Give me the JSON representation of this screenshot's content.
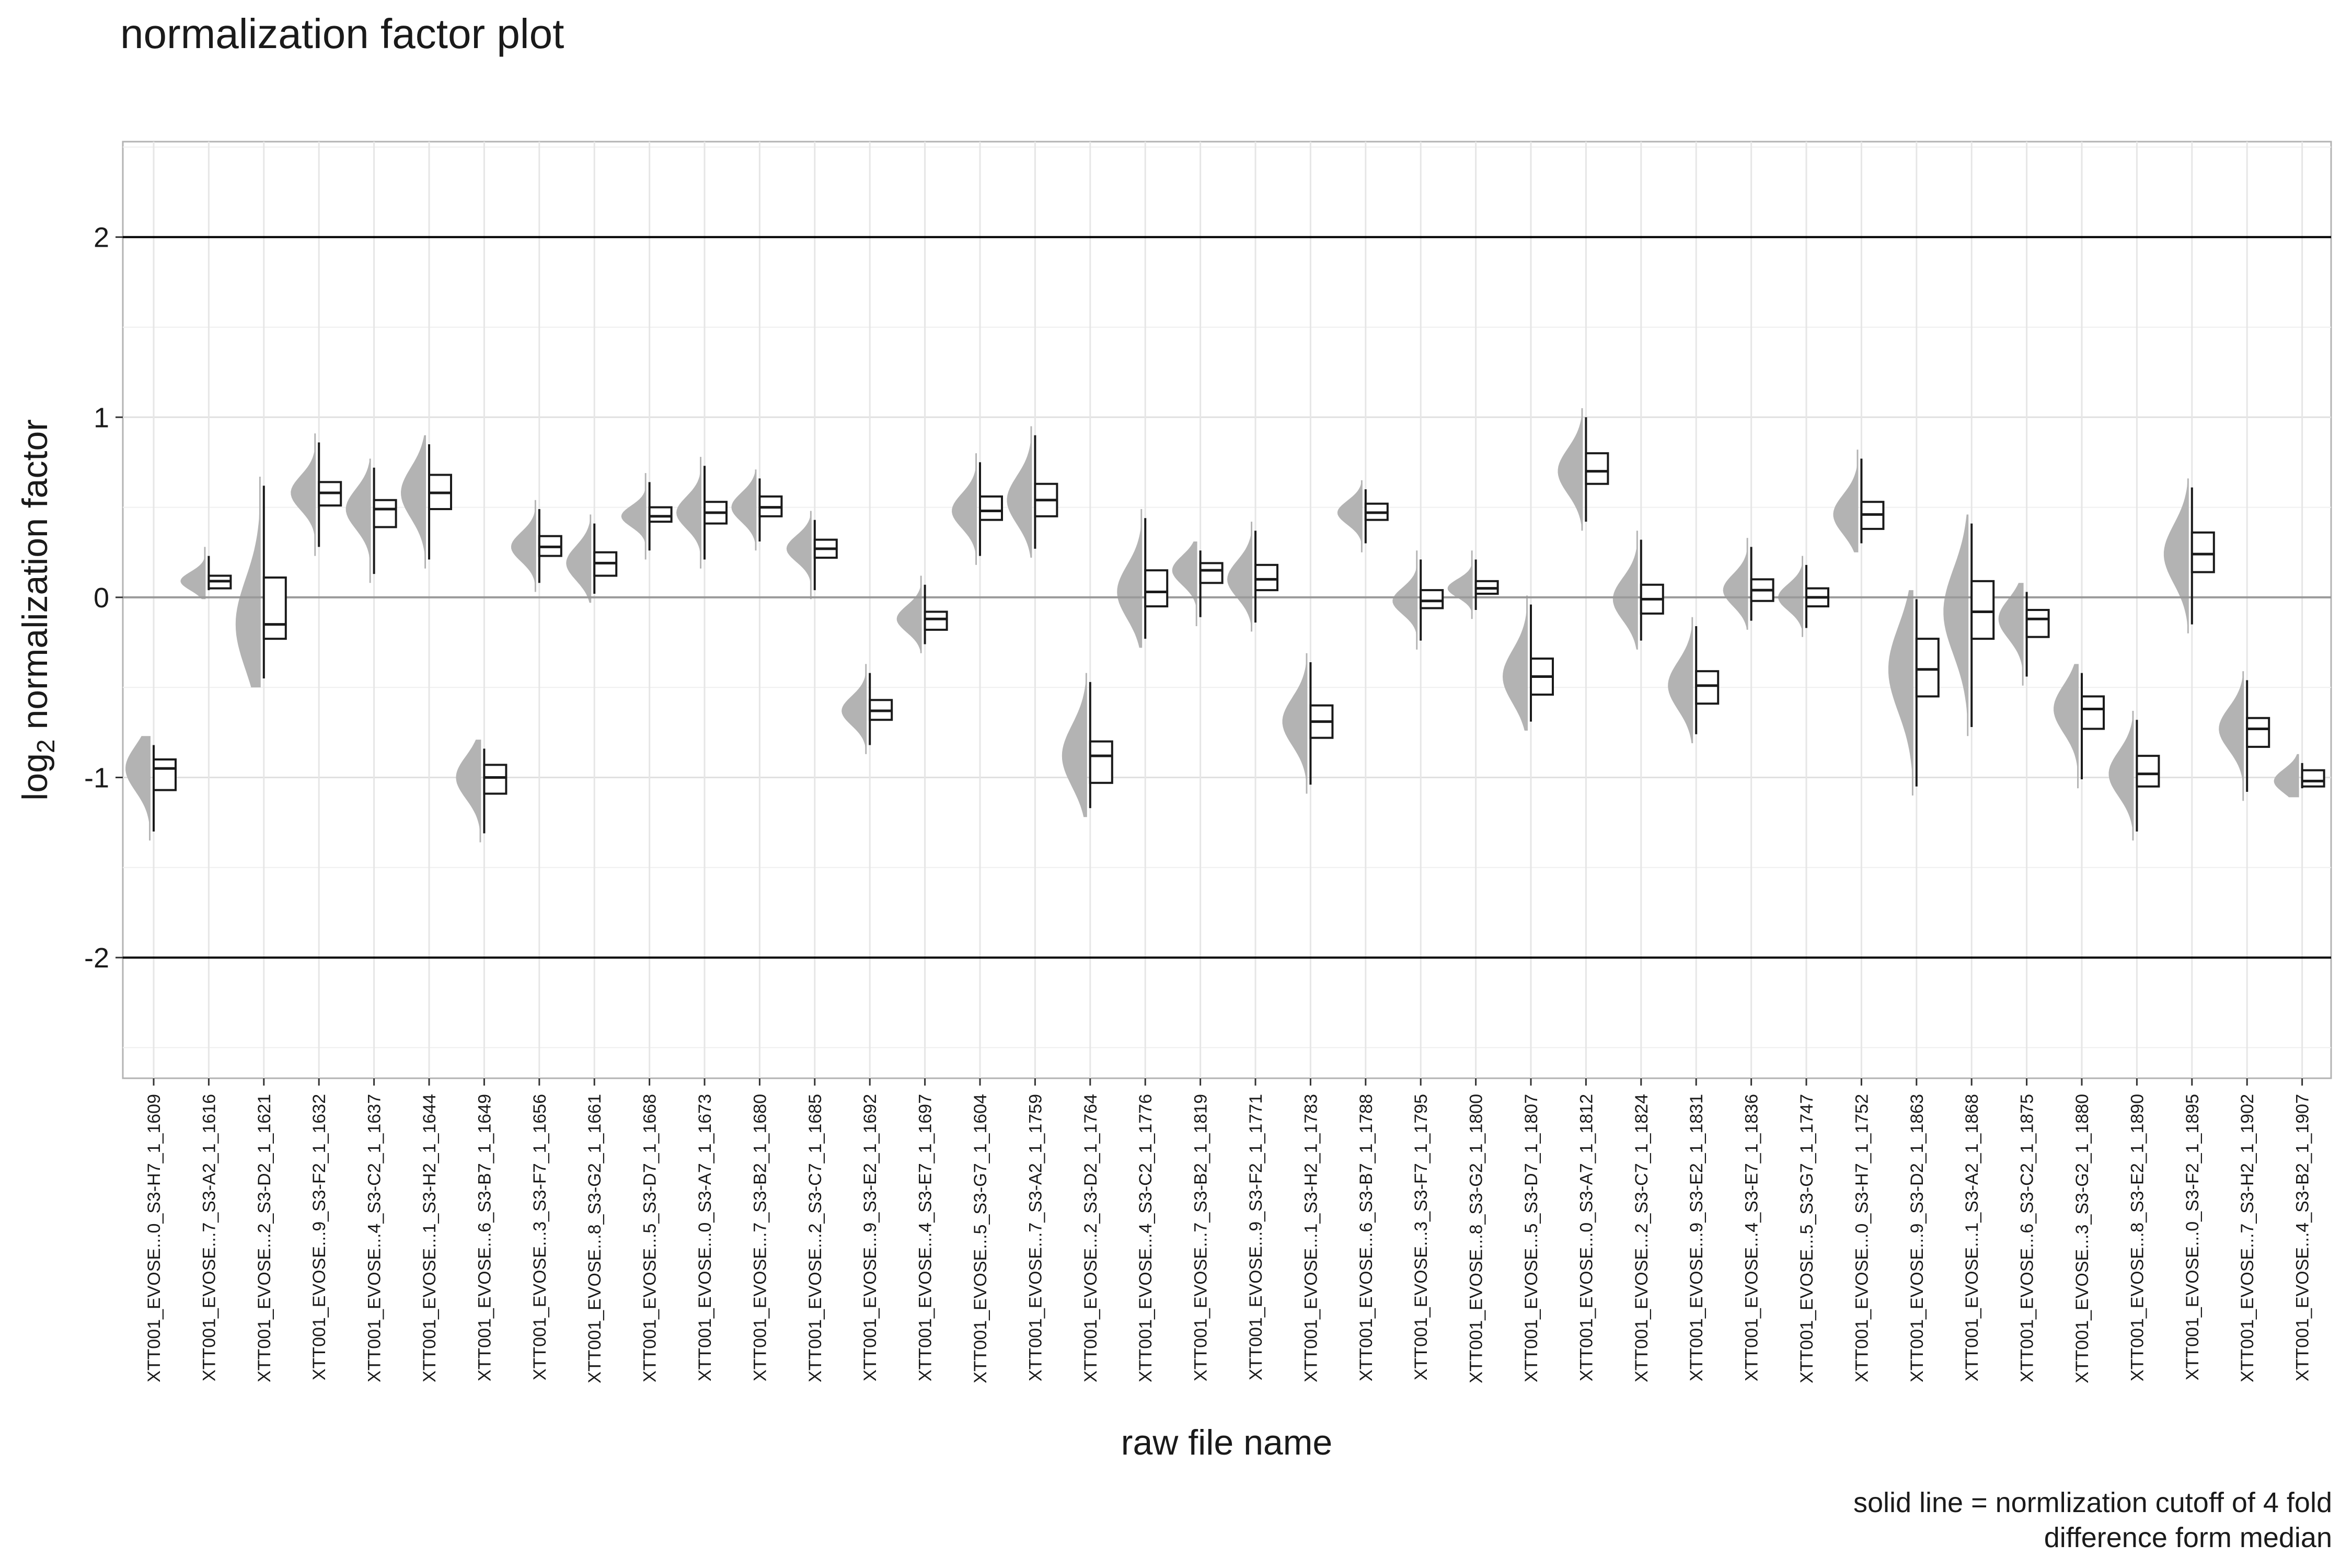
{
  "chart_data": {
    "type": "violin-boxplot",
    "title": "normalization factor plot",
    "xlabel": "raw file name",
    "ylabel_main": "log",
    "ylabel_sub": "2",
    "ylabel_rest": " normalization factor",
    "caption_line1": "solid line = normlization cutoff of 4 fold",
    "caption_line2": "difference form median",
    "ylim": [
      -2.67,
      2.53
    ],
    "yticks": [
      2,
      1,
      0,
      -1,
      -2
    ],
    "ytick_labels": [
      "2",
      "1",
      "0",
      "-1",
      "-2"
    ],
    "reference_lines": {
      "cutoffs": [
        2,
        -2
      ],
      "median": 0
    },
    "grid": true,
    "colors": {
      "violin": "#b3b3b3",
      "box": "#1a1a1a",
      "cutoff": "#000000",
      "median": "#9a9a9a",
      "grid": "#e3e3e3",
      "panel_border": "#b3b3b3"
    },
    "categories": [
      "XTT001_EVOSE...0_S3-H7_1_1609",
      "XTT001_EVOSE...7_S3-A2_1_1616",
      "XTT001_EVOSE...2_S3-D2_1_1621",
      "XTT001_EVOSE...9_S3-F2_1_1632",
      "XTT001_EVOSE...4_S3-C2_1_1637",
      "XTT001_EVOSE...1_S3-H2_1_1644",
      "XTT001_EVOSE...6_S3-B7_1_1649",
      "XTT001_EVOSE...3_S3-F7_1_1656",
      "XTT001_EVOSE...8_S3-G2_1_1661",
      "XTT001_EVOSE...5_S3-D7_1_1668",
      "XTT001_EVOSE...0_S3-A7_1_1673",
      "XTT001_EVOSE...7_S3-B2_1_1680",
      "XTT001_EVOSE...2_S3-C7_1_1685",
      "XTT001_EVOSE...9_S3-E2_1_1692",
      "XTT001_EVOSE...4_S3-E7_1_1697",
      "XTT001_EVOSE...5_S3-G7_1_1604",
      "XTT001_EVOSE...7_S3-A2_1_1759",
      "XTT001_EVOSE...2_S3-D2_1_1764",
      "XTT001_EVOSE...4_S3-C2_1_1776",
      "XTT001_EVOSE...7_S3-B2_1_1819",
      "XTT001_EVOSE...9_S3-F2_1_1771",
      "XTT001_EVOSE...1_S3-H2_1_1783",
      "XTT001_EVOSE...6_S3-B7_1_1788",
      "XTT001_EVOSE...3_S3-F7_1_1795",
      "XTT001_EVOSE...8_S3-G2_1_1800",
      "XTT001_EVOSE...5_S3-D7_1_1807",
      "XTT001_EVOSE...0_S3-A7_1_1812",
      "XTT001_EVOSE...2_S3-C7_1_1824",
      "XTT001_EVOSE...9_S3-E2_1_1831",
      "XTT001_EVOSE...4_S3-E7_1_1836",
      "XTT001_EVOSE...5_S3-G7_1_1747",
      "XTT001_EVOSE...0_S3-H7_1_1752",
      "XTT001_EVOSE...9_S3-D2_1_1863",
      "XTT001_EVOSE...1_S3-A2_1_1868",
      "XTT001_EVOSE...6_S3-C2_1_1875",
      "XTT001_EVOSE...3_S3-G2_1_1880",
      "XTT001_EVOSE...8_S3-E2_1_1890",
      "XTT001_EVOSE...0_S3-F2_1_1895",
      "XTT001_EVOSE...7_S3-H2_1_1902",
      "XTT001_EVOSE...4_S3-B2_1_1907"
    ],
    "boxes": [
      {
        "min": -1.3,
        "q1": -1.07,
        "median": -0.95,
        "q3": -0.9,
        "max": -0.82
      },
      {
        "min": 0.04,
        "q1": 0.05,
        "median": 0.09,
        "q3": 0.12,
        "max": 0.23
      },
      {
        "min": -0.45,
        "q1": -0.23,
        "median": -0.15,
        "q3": 0.11,
        "max": 0.62
      },
      {
        "min": 0.28,
        "q1": 0.51,
        "median": 0.58,
        "q3": 0.64,
        "max": 0.86
      },
      {
        "min": 0.13,
        "q1": 0.39,
        "median": 0.49,
        "q3": 0.54,
        "max": 0.72
      },
      {
        "min": 0.21,
        "q1": 0.49,
        "median": 0.58,
        "q3": 0.68,
        "max": 0.85
      },
      {
        "min": -1.31,
        "q1": -1.09,
        "median": -1.0,
        "q3": -0.93,
        "max": -0.84
      },
      {
        "min": 0.08,
        "q1": 0.23,
        "median": 0.28,
        "q3": 0.34,
        "max": 0.49
      },
      {
        "min": 0.02,
        "q1": 0.12,
        "median": 0.19,
        "q3": 0.25,
        "max": 0.41
      },
      {
        "min": 0.26,
        "q1": 0.42,
        "median": 0.45,
        "q3": 0.5,
        "max": 0.64
      },
      {
        "min": 0.21,
        "q1": 0.41,
        "median": 0.47,
        "q3": 0.53,
        "max": 0.73
      },
      {
        "min": 0.31,
        "q1": 0.45,
        "median": 0.5,
        "q3": 0.56,
        "max": 0.66
      },
      {
        "min": 0.04,
        "q1": 0.22,
        "median": 0.27,
        "q3": 0.32,
        "max": 0.43
      },
      {
        "min": -0.82,
        "q1": -0.68,
        "median": -0.63,
        "q3": -0.57,
        "max": -0.42
      },
      {
        "min": -0.26,
        "q1": -0.18,
        "median": -0.12,
        "q3": -0.08,
        "max": 0.07
      },
      {
        "min": 0.23,
        "q1": 0.43,
        "median": 0.48,
        "q3": 0.56,
        "max": 0.75
      },
      {
        "min": 0.27,
        "q1": 0.45,
        "median": 0.54,
        "q3": 0.63,
        "max": 0.9
      },
      {
        "min": -1.17,
        "q1": -1.03,
        "median": -0.88,
        "q3": -0.8,
        "max": -0.47
      },
      {
        "min": -0.23,
        "q1": -0.05,
        "median": 0.03,
        "q3": 0.15,
        "max": 0.44
      },
      {
        "min": -0.11,
        "q1": 0.08,
        "median": 0.15,
        "q3": 0.19,
        "max": 0.26
      },
      {
        "min": -0.14,
        "q1": 0.04,
        "median": 0.1,
        "q3": 0.18,
        "max": 0.37
      },
      {
        "min": -1.04,
        "q1": -0.78,
        "median": -0.69,
        "q3": -0.6,
        "max": -0.36
      },
      {
        "min": 0.3,
        "q1": 0.43,
        "median": 0.47,
        "q3": 0.52,
        "max": 0.6
      },
      {
        "min": -0.24,
        "q1": -0.06,
        "median": -0.02,
        "q3": 0.04,
        "max": 0.21
      },
      {
        "min": -0.07,
        "q1": 0.02,
        "median": 0.05,
        "q3": 0.09,
        "max": 0.21
      },
      {
        "min": -0.69,
        "q1": -0.54,
        "median": -0.44,
        "q3": -0.34,
        "max": -0.04
      },
      {
        "min": 0.42,
        "q1": 0.63,
        "median": 0.7,
        "q3": 0.8,
        "max": 1.0
      },
      {
        "min": -0.24,
        "q1": -0.09,
        "median": -0.01,
        "q3": 0.07,
        "max": 0.32
      },
      {
        "min": -0.76,
        "q1": -0.59,
        "median": -0.49,
        "q3": -0.41,
        "max": -0.16
      },
      {
        "min": -0.13,
        "q1": -0.02,
        "median": 0.04,
        "q3": 0.1,
        "max": 0.28
      },
      {
        "min": -0.17,
        "q1": -0.05,
        "median": 0.0,
        "q3": 0.05,
        "max": 0.18
      },
      {
        "min": 0.3,
        "q1": 0.38,
        "median": 0.46,
        "q3": 0.53,
        "max": 0.77
      },
      {
        "min": -1.05,
        "q1": -0.55,
        "median": -0.4,
        "q3": -0.23,
        "max": -0.01
      },
      {
        "min": -0.72,
        "q1": -0.23,
        "median": -0.08,
        "q3": 0.09,
        "max": 0.41
      },
      {
        "min": -0.44,
        "q1": -0.22,
        "median": -0.12,
        "q3": -0.07,
        "max": 0.03
      },
      {
        "min": -1.01,
        "q1": -0.73,
        "median": -0.62,
        "q3": -0.55,
        "max": -0.42
      },
      {
        "min": -1.3,
        "q1": -1.05,
        "median": -0.98,
        "q3": -0.88,
        "max": -0.68
      },
      {
        "min": -0.15,
        "q1": 0.14,
        "median": 0.24,
        "q3": 0.36,
        "max": 0.61
      },
      {
        "min": -1.08,
        "q1": -0.83,
        "median": -0.73,
        "q3": -0.67,
        "max": -0.46
      },
      {
        "min": -1.06,
        "q1": -1.05,
        "median": -1.02,
        "q3": -0.96,
        "max": -0.92
      }
    ]
  }
}
